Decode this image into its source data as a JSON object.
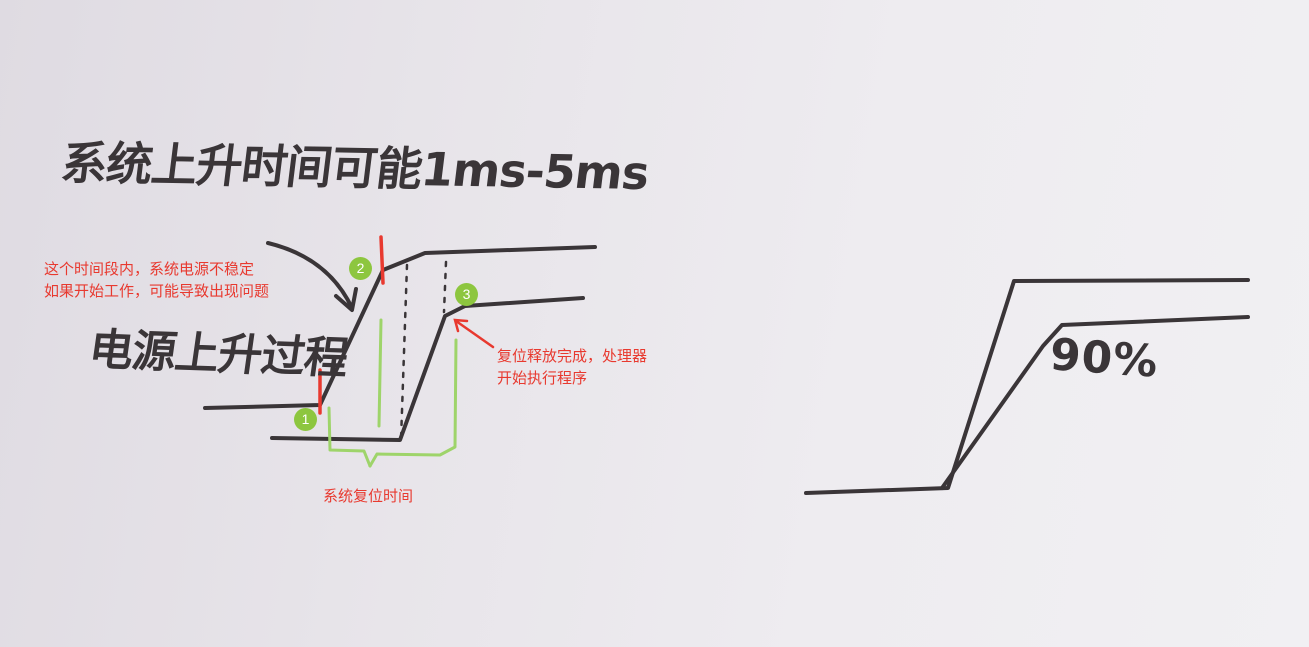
{
  "handwriting": {
    "title": "系统上升时间可能1ms-5ms",
    "power_rise_label": "电源上升过程",
    "threshold_label": "90%"
  },
  "annotations": {
    "unstable_period": [
      "这个时间段内，系统电源不稳定",
      "如果开始工作，可能导致出现问题"
    ],
    "reset_release": [
      "复位释放完成，处理器",
      "开始执行程序"
    ],
    "reset_time": "系统复位时间"
  },
  "markers": [
    "1",
    "2",
    "3"
  ],
  "colors": {
    "ink": "#3a3538",
    "annotation_red": "#e8392f",
    "marker_green": "#8dc63f",
    "bracket_green": "#9ed46a"
  }
}
